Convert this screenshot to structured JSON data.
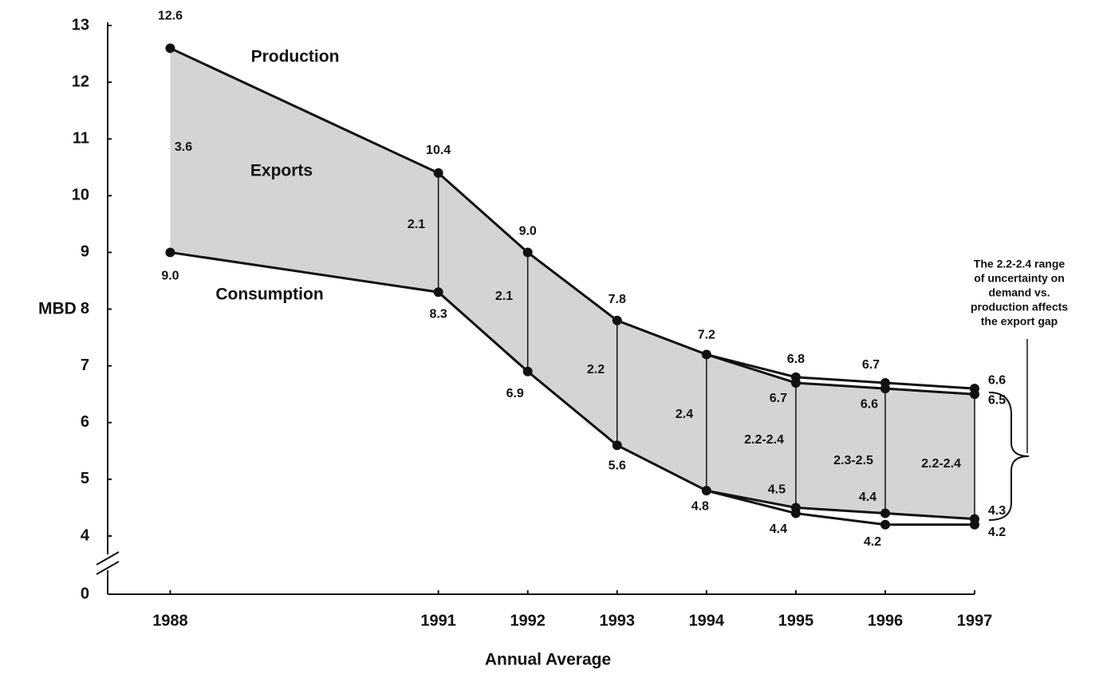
{
  "chart_data": {
    "type": "line",
    "x_label": "Annual Average",
    "y_label": "MBD",
    "x": [
      1988,
      1991,
      1992,
      1993,
      1994,
      1995,
      1996,
      1997
    ],
    "xlim": [
      1987.3,
      1997
    ],
    "xticks": [
      1988,
      1991,
      1992,
      1993,
      1994,
      1995,
      1996,
      1997
    ],
    "ylim": [
      4,
      13
    ],
    "yticks": [
      0,
      4,
      5,
      6,
      7,
      8,
      9,
      10,
      11,
      12,
      13
    ],
    "axis_break": true,
    "series": [
      {
        "name": "Production",
        "color": "#111111",
        "values": [
          12.6,
          10.4,
          9,
          7.8,
          7.2,
          6.8,
          6.7,
          6.6
        ],
        "value_labels": [
          "12.6",
          "10.4",
          "9.0",
          "7.8",
          "7.2",
          "6.8",
          "6.7",
          "6.6"
        ],
        "low_values": [
          null,
          null,
          null,
          null,
          null,
          6.7,
          6.6,
          6.5
        ],
        "low_value_labels": [
          null,
          null,
          null,
          null,
          null,
          "6.7",
          "6.6",
          "6.5"
        ]
      },
      {
        "name": "Consumption",
        "color": "#111111",
        "values": [
          9,
          8.3,
          6.9,
          5.6,
          4.8,
          4.5,
          4.4,
          4.3
        ],
        "value_labels": [
          "9.0",
          "8.3",
          "6.9",
          "5.6",
          "4.8",
          "4.5",
          "4.4",
          "4.3"
        ],
        "low_values": [
          null,
          null,
          null,
          null,
          null,
          4.4,
          4.2,
          4.2
        ],
        "low_value_labels": [
          null,
          null,
          null,
          null,
          null,
          "4.4",
          "4.2",
          "4.2"
        ]
      }
    ],
    "area_label": "Exports",
    "export_gaps": [
      3.6,
      2.1,
      2.1,
      2.2,
      2.4,
      "2.2-2.4",
      "2.3-2.5",
      "2.2-2.4"
    ],
    "annotation": [
      "The 2.2-2.4 range",
      "of uncertainty on",
      "demand vs.",
      "production affects",
      "the export gap"
    ]
  }
}
